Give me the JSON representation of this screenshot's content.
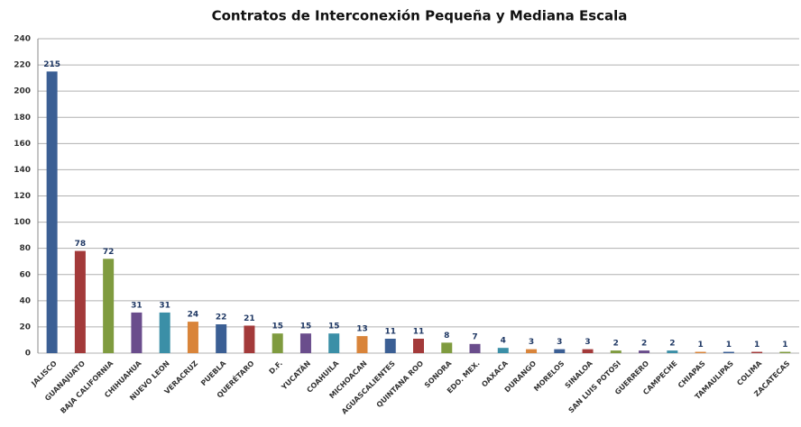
{
  "chart_data": {
    "type": "bar",
    "title": "Contratos de Interconexión Pequeña y Mediana Escala",
    "categories": [
      "JALISCO",
      "GUANAJUATO",
      "BAJA CALIFORNIA",
      "CHIHUAHUA",
      "NUEVO LEON",
      "VERACRUZ",
      "PUEBLA",
      "QUERÉTARO",
      "D.F.",
      "YUCATÁN",
      "COAHUILA",
      "MICHOACAN",
      "AGUASCALIENTES",
      "QUINTANA ROO",
      "SONORA",
      "EDO. MEX.",
      "OAXACA",
      "DURANGO",
      "MORELOS",
      "SINALOA",
      "SAN LUIS POTOSI",
      "GUERRERO",
      "CAMPECHE",
      "CHIAPAS",
      "TAMAULIPAS",
      "COLIMA",
      "ZACATECAS"
    ],
    "values": [
      215,
      78,
      72,
      31,
      31,
      24,
      22,
      21,
      15,
      15,
      15,
      13,
      11,
      11,
      8,
      7,
      4,
      3,
      3,
      3,
      2,
      2,
      2,
      1,
      1,
      1,
      1
    ],
    "colors": [
      "#3b5f94",
      "#a33a3a",
      "#7f9b3f",
      "#6a4d8c",
      "#3b8fa7",
      "#d9843a",
      "#3b5f94",
      "#a33a3a",
      "#7f9b3f",
      "#6a4d8c",
      "#3b8fa7",
      "#d9843a",
      "#3b5f94",
      "#a33a3a",
      "#7f9b3f",
      "#6a4d8c",
      "#3b8fa7",
      "#d9843a",
      "#3b5f94",
      "#a33a3a",
      "#7f9b3f",
      "#6a4d8c",
      "#3b8fa7",
      "#d9843a",
      "#3b5f94",
      "#a33a3a",
      "#7f9b3f"
    ],
    "ylim": [
      0,
      240
    ],
    "yticks": [
      0,
      20,
      40,
      60,
      80,
      100,
      120,
      140,
      160,
      180,
      200,
      220,
      240
    ],
    "grid": true
  }
}
